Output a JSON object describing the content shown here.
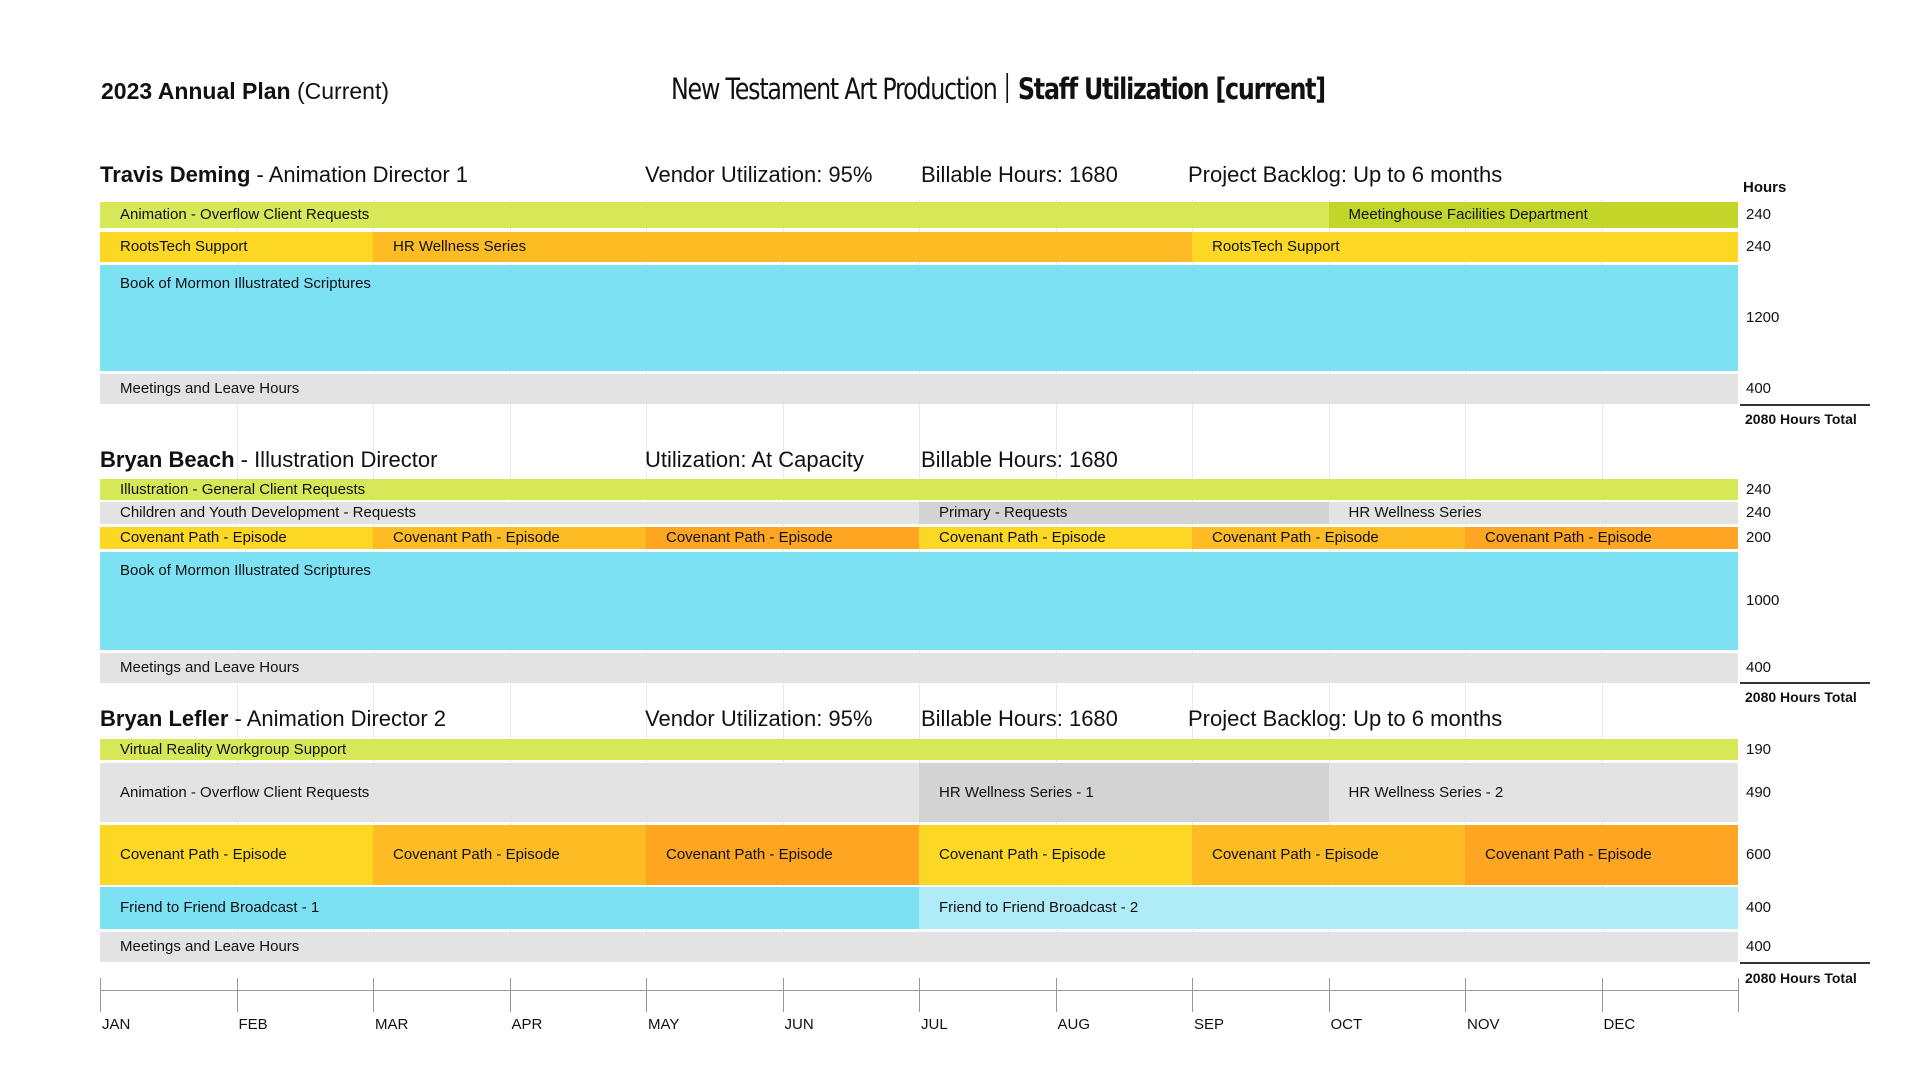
{
  "header": {
    "plan_title_bold": "2023 Annual Plan",
    "plan_title_paren": "(Current)",
    "title_left": "New Testament Art Production",
    "title_right": "Staff Utilization [current]"
  },
  "hours_header": "Hours",
  "colors": {
    "lime": "#d6e857",
    "lime_dark": "#c2d62a",
    "yellow": "#fcd824",
    "orange_light": "#fdbc24",
    "orange": "#fea522",
    "cyan": "#7de1f4",
    "cyan_light": "#b0ebf8",
    "gray": "#e3e3e3",
    "gray_dark": "#d3d3d3"
  },
  "chart_data": {
    "type": "gantt",
    "months": [
      "JAN",
      "FEB",
      "MAR",
      "APR",
      "MAY",
      "JUN",
      "JUL",
      "AUG",
      "SEP",
      "OCT",
      "NOV",
      "DEC"
    ],
    "people": [
      {
        "name": "Travis Deming",
        "role": "- Animation Director 1",
        "stats": [
          "Vendor Utilization: 95%",
          "Billable Hours: 1680",
          "Project Backlog: Up to 6 months"
        ],
        "total": "2080 Hours Total",
        "rows": [
          {
            "hours": "240",
            "segments": [
              {
                "label": "Animation - Overflow Client Requests",
                "start": 0,
                "end": 9,
                "color": "lime"
              },
              {
                "label": "Meetinghouse Facilities Department",
                "start": 9,
                "end": 12,
                "color": "lime_dark"
              }
            ]
          },
          {
            "hours": "240",
            "segments": [
              {
                "label": "RootsTech Support",
                "start": 0,
                "end": 2,
                "color": "yellow"
              },
              {
                "label": "HR Wellness Series",
                "start": 2,
                "end": 8,
                "color": "orange_light"
              },
              {
                "label": "RootsTech Support",
                "start": 8,
                "end": 12,
                "color": "yellow"
              }
            ]
          },
          {
            "hours": "1200",
            "segments": [
              {
                "label": "Book of Mormon Illustrated Scriptures",
                "start": 0,
                "end": 12,
                "color": "cyan"
              }
            ]
          },
          {
            "hours": "400",
            "segments": [
              {
                "label": "Meetings and Leave Hours",
                "start": 0,
                "end": 12,
                "color": "gray"
              }
            ]
          }
        ]
      },
      {
        "name": "Bryan Beach",
        "role": "- Illustration Director",
        "stats": [
          "Utilization: At Capacity",
          "Billable Hours: 1680"
        ],
        "total": "2080 Hours Total",
        "rows": [
          {
            "hours": "240",
            "segments": [
              {
                "label": "Illustration - General Client Requests",
                "start": 0,
                "end": 12,
                "color": "lime"
              }
            ]
          },
          {
            "hours": "240",
            "segments": [
              {
                "label": "Children and Youth Development - Requests",
                "start": 0,
                "end": 6,
                "color": "gray"
              },
              {
                "label": "Primary - Requests",
                "start": 6,
                "end": 9,
                "color": "gray_dark"
              },
              {
                "label": "HR Wellness Series",
                "start": 9,
                "end": 12,
                "color": "gray"
              }
            ]
          },
          {
            "hours": "200",
            "segments": [
              {
                "label": "Covenant Path - Episode",
                "start": 0,
                "end": 2,
                "color": "yellow"
              },
              {
                "label": "Covenant Path - Episode",
                "start": 2,
                "end": 4,
                "color": "orange_light"
              },
              {
                "label": "Covenant Path - Episode",
                "start": 4,
                "end": 6,
                "color": "orange"
              },
              {
                "label": "Covenant Path - Episode",
                "start": 6,
                "end": 8,
                "color": "yellow"
              },
              {
                "label": "Covenant Path - Episode",
                "start": 8,
                "end": 10,
                "color": "orange_light"
              },
              {
                "label": "Covenant Path - Episode",
                "start": 10,
                "end": 12,
                "color": "orange"
              }
            ]
          },
          {
            "hours": "1000",
            "segments": [
              {
                "label": "Book of Mormon Illustrated Scriptures",
                "start": 0,
                "end": 12,
                "color": "cyan"
              }
            ]
          },
          {
            "hours": "400",
            "segments": [
              {
                "label": "Meetings and Leave Hours",
                "start": 0,
                "end": 12,
                "color": "gray"
              }
            ]
          }
        ]
      },
      {
        "name": "Bryan Lefler",
        "role": "- Animation Director 2",
        "stats": [
          "Vendor Utilization: 95%",
          "Billable Hours: 1680",
          "Project Backlog: Up to 6 months"
        ],
        "total": "2080 Hours Total",
        "rows": [
          {
            "hours": "190",
            "segments": [
              {
                "label": "Virtual Reality Workgroup Support",
                "start": 0,
                "end": 12,
                "color": "lime"
              }
            ]
          },
          {
            "hours": "490",
            "segments": [
              {
                "label": "Animation - Overflow Client Requests",
                "start": 0,
                "end": 6,
                "color": "gray"
              },
              {
                "label": "HR Wellness Series - 1",
                "start": 6,
                "end": 9,
                "color": "gray_dark"
              },
              {
                "label": "HR Wellness Series - 2",
                "start": 9,
                "end": 12,
                "color": "gray"
              }
            ]
          },
          {
            "hours": "600",
            "segments": [
              {
                "label": "Covenant Path - Episode",
                "start": 0,
                "end": 2,
                "color": "yellow"
              },
              {
                "label": "Covenant Path - Episode",
                "start": 2,
                "end": 4,
                "color": "orange_light"
              },
              {
                "label": "Covenant Path - Episode",
                "start": 4,
                "end": 6,
                "color": "orange"
              },
              {
                "label": "Covenant Path - Episode",
                "start": 6,
                "end": 8,
                "color": "yellow"
              },
              {
                "label": "Covenant Path - Episode",
                "start": 8,
                "end": 10,
                "color": "orange_light"
              },
              {
                "label": "Covenant Path - Episode",
                "start": 10,
                "end": 12,
                "color": "orange"
              }
            ]
          },
          {
            "hours": "400",
            "segments": [
              {
                "label": "Friend to Friend Broadcast - 1",
                "start": 0,
                "end": 6,
                "color": "cyan"
              },
              {
                "label": "Friend to Friend Broadcast - 2",
                "start": 6,
                "end": 12,
                "color": "cyan_light"
              }
            ]
          },
          {
            "hours": "400",
            "segments": [
              {
                "label": "Meetings and Leave Hours",
                "start": 0,
                "end": 12,
                "color": "gray"
              }
            ]
          }
        ]
      }
    ]
  }
}
